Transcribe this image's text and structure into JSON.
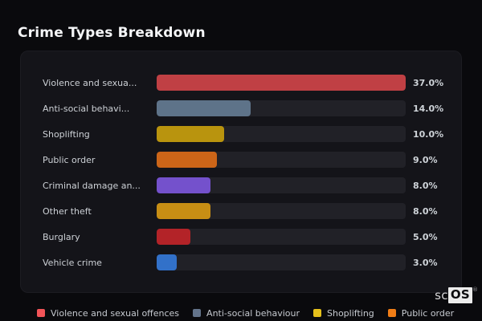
{
  "title": "Crime Types Breakdown",
  "chart_data": {
    "type": "bar",
    "orientation": "horizontal",
    "title": "Crime Types Breakdown",
    "categories": [
      "Violence and sexua...",
      "Anti-social behavi...",
      "Shoplifting",
      "Public order",
      "Criminal damage an...",
      "Other theft",
      "Burglary",
      "Vehicle crime"
    ],
    "values": [
      37.0,
      14.0,
      10.0,
      9.0,
      8.0,
      8.0,
      5.0,
      3.0
    ],
    "value_labels": [
      "37.0%",
      "14.0%",
      "10.0%",
      "9.0%",
      "8.0%",
      "8.0%",
      "5.0%",
      "3.0%"
    ],
    "bar_colors": [
      "#c04044",
      "#5e7389",
      "#b9940e",
      "#cc6518",
      "#7451cc",
      "#c78e14",
      "#b32328",
      "#3271c9"
    ],
    "max_value": 37.0,
    "unit": "%",
    "grid": false,
    "legend_position": "bottom"
  },
  "legend": {
    "items": [
      {
        "label": "Violence and sexual offences",
        "color": "#f25458"
      },
      {
        "label": "Anti-social behaviour",
        "color": "#64748b"
      },
      {
        "label": "Shoplifting",
        "color": "#e5c01b"
      },
      {
        "label": "Public order",
        "color": "#f07d16"
      }
    ]
  },
  "branding": {
    "prefix": "sc",
    "suffix": "OS",
    "registered_mark": "®"
  },
  "colors": {
    "page_bg": "#0a0a0d",
    "panel_bg": "#141419",
    "track_bg": "#212127",
    "title_text": "#f4f5f7",
    "label_text": "#cdd1d6"
  }
}
